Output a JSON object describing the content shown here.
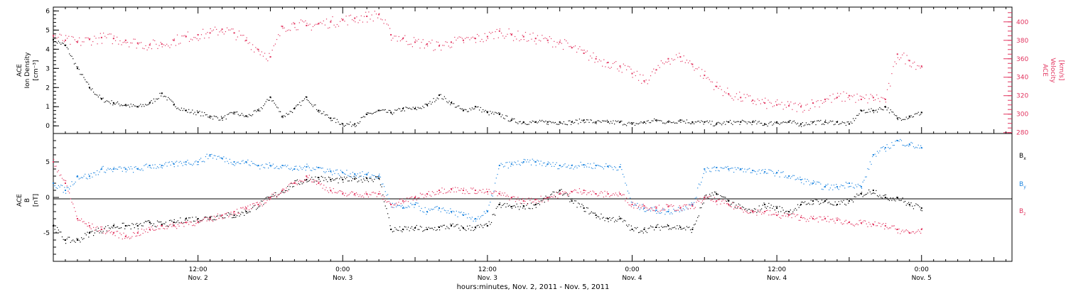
{
  "colors": {
    "black": "#000000",
    "density": "#000000",
    "velocity": "#e2345f",
    "bx": "#000000",
    "by": "#1f86e0",
    "bz": "#e2345f"
  },
  "xaxis": {
    "ticks": [
      {
        "t": 36,
        "time": "12:00",
        "date": "Nov. 2"
      },
      {
        "t": 48,
        "time": "0:00",
        "date": "Nov. 3"
      },
      {
        "t": 60,
        "time": "12:00",
        "date": "Nov. 3"
      },
      {
        "t": 72,
        "time": "0:00",
        "date": "Nov. 4"
      },
      {
        "t": 84,
        "time": "12:00",
        "date": "Nov. 4"
      },
      {
        "t": 96,
        "time": "0:00",
        "date": "Nov. 5"
      }
    ],
    "label": "hours:minutes, Nov.  2, 2011 - Nov.  5, 2011",
    "range_hours": [
      24,
      103.5
    ]
  },
  "panel_top": {
    "left_label_lines": [
      "ACE",
      "Ion Density"
    ],
    "left_unit": "[cm⁻³]",
    "left_ticks": [
      "0",
      "1",
      "2",
      "3",
      "4",
      "5",
      "6"
    ],
    "right_label_lines": [
      "ACE",
      "Velocity"
    ],
    "right_unit": "[km/s]",
    "right_ticks": [
      "280",
      "300",
      "320",
      "340",
      "360",
      "380",
      "400"
    ]
  },
  "panel_bottom": {
    "left_label_lines": [
      "ACE",
      "B"
    ],
    "left_unit": "[nT]",
    "left_ticks": [
      "-5",
      "0",
      "5"
    ],
    "legend": [
      {
        "label": "B",
        "sub": "x",
        "color": "#000000"
      },
      {
        "label": "B",
        "sub": "y",
        "color": "#1f86e0"
      },
      {
        "label": "B",
        "sub": "z",
        "color": "#e2345f"
      }
    ]
  },
  "chart_data": [
    {
      "type": "scatter",
      "title": "",
      "x_units": "hours since Nov. 1, 2011 0:00",
      "series": [
        {
          "name": "Ion Density",
          "axis": "left",
          "ylim": [
            -0.4,
            6.2
          ],
          "x": [
            24,
            25,
            26,
            27,
            28,
            29,
            30,
            31,
            32,
            33,
            34,
            35,
            36,
            37,
            38,
            39,
            40,
            41,
            42,
            43,
            44,
            45,
            46,
            47,
            48,
            49,
            50,
            51,
            52,
            53,
            54,
            55,
            56,
            57,
            58,
            59,
            60,
            61,
            62,
            63,
            64,
            65,
            66,
            67,
            68,
            69,
            70,
            71,
            72,
            73,
            74,
            75,
            76,
            77,
            78,
            79,
            80,
            81,
            82,
            83,
            84,
            85,
            86,
            87,
            88,
            89,
            90,
            91,
            92,
            93,
            94,
            95,
            96
          ],
          "values": [
            4.5,
            4.2,
            3.0,
            2.0,
            1.4,
            1.2,
            1.1,
            1.0,
            1.2,
            1.7,
            1.1,
            0.8,
            0.7,
            0.5,
            0.4,
            0.7,
            0.5,
            0.8,
            1.5,
            0.5,
            0.9,
            1.5,
            0.8,
            0.4,
            0.1,
            0.1,
            0.6,
            0.8,
            0.7,
            0.9,
            0.9,
            1.1,
            1.6,
            1.2,
            0.8,
            1.0,
            0.7,
            0.6,
            0.3,
            0.2,
            0.2,
            0.2,
            0.2,
            0.2,
            0.3,
            0.2,
            0.2,
            0.2,
            0.1,
            0.2,
            0.3,
            0.2,
            0.3,
            0.2,
            0.2,
            0.1,
            0.2,
            0.2,
            0.2,
            0.1,
            0.2,
            0.2,
            0.1,
            0.2,
            0.2,
            0.2,
            0.1,
            0.8,
            0.8,
            1.0,
            0.4,
            0.5,
            0.7
          ]
        },
        {
          "name": "Velocity",
          "axis": "right",
          "ylim": [
            279,
            416
          ],
          "x": [
            24,
            25,
            26,
            27,
            28,
            29,
            30,
            31,
            32,
            33,
            34,
            35,
            36,
            37,
            38,
            39,
            40,
            41,
            42,
            43,
            44,
            45,
            46,
            47,
            48,
            49,
            50,
            51,
            52,
            53,
            54,
            55,
            56,
            57,
            58,
            59,
            60,
            61,
            62,
            63,
            64,
            65,
            66,
            67,
            68,
            69,
            70,
            71,
            72,
            73,
            74,
            75,
            76,
            77,
            78,
            79,
            80,
            81,
            82,
            83,
            84,
            85,
            86,
            87,
            88,
            89,
            90,
            91,
            92,
            93,
            94,
            95,
            96
          ],
          "values": [
            385,
            380,
            378,
            381,
            383,
            382,
            380,
            377,
            375,
            376,
            380,
            384,
            386,
            388,
            392,
            388,
            380,
            370,
            362,
            395,
            398,
            396,
            398,
            400,
            402,
            404,
            406,
            408,
            386,
            382,
            378,
            376,
            374,
            378,
            380,
            382,
            384,
            390,
            386,
            384,
            382,
            380,
            378,
            372,
            366,
            360,
            356,
            352,
            344,
            336,
            348,
            360,
            362,
            354,
            342,
            330,
            322,
            318,
            315,
            312,
            310,
            309,
            308,
            312,
            316,
            318,
            320,
            316,
            318,
            316,
            365,
            358,
            352
          ]
        }
      ]
    },
    {
      "type": "scatter",
      "title": "",
      "x_units": "hours since Nov. 1, 2011 0:00",
      "ylim": [
        -9,
        9
      ],
      "series": [
        {
          "name": "Bx",
          "x": [
            24,
            25,
            26,
            27,
            28,
            29,
            30,
            31,
            32,
            33,
            34,
            35,
            36,
            37,
            38,
            39,
            40,
            41,
            42,
            43,
            44,
            45,
            46,
            47,
            48,
            49,
            50,
            51,
            52,
            53,
            54,
            55,
            56,
            57,
            58,
            59,
            60,
            61,
            62,
            63,
            64,
            65,
            66,
            67,
            68,
            69,
            70,
            71,
            72,
            73,
            74,
            75,
            76,
            77,
            78,
            79,
            80,
            81,
            82,
            83,
            84,
            85,
            86,
            87,
            88,
            89,
            90,
            91,
            92,
            93,
            94,
            95,
            96
          ],
          "values": [
            -4,
            -6,
            -6,
            -5,
            -4.5,
            -4,
            -4,
            -4,
            -3.5,
            -3.8,
            -3.5,
            -3,
            -3,
            -2.8,
            -2.5,
            -2.5,
            -2,
            -1,
            0,
            1,
            2,
            2.5,
            2.8,
            2.5,
            2.5,
            2.6,
            2.7,
            2.7,
            -4.5,
            -4.5,
            -4.3,
            -4.5,
            -4.2,
            -4,
            -4.3,
            -4.2,
            -4,
            -1,
            -1.3,
            -1.2,
            -1,
            0,
            1,
            -0.5,
            -1.5,
            -2.5,
            -3,
            -3,
            -4.5,
            -4.5,
            -4.2,
            -4,
            -4.2,
            -4.5,
            0,
            0.5,
            -0.5,
            -1.5,
            -2,
            -1,
            -1.5,
            -2,
            -1,
            -0.5,
            -0.5,
            -1,
            -0.5,
            0.5,
            1,
            0,
            0,
            -1,
            -1.5
          ]
        },
        {
          "name": "By",
          "x": [
            24,
            25,
            26,
            27,
            28,
            29,
            30,
            31,
            32,
            33,
            34,
            35,
            36,
            37,
            38,
            39,
            40,
            41,
            42,
            43,
            44,
            45,
            46,
            47,
            48,
            49,
            50,
            51,
            52,
            53,
            54,
            55,
            56,
            57,
            58,
            59,
            60,
            61,
            62,
            63,
            64,
            65,
            66,
            67,
            68,
            69,
            70,
            71,
            72,
            73,
            74,
            75,
            76,
            77,
            78,
            79,
            80,
            81,
            82,
            83,
            84,
            85,
            86,
            87,
            88,
            89,
            90,
            91,
            92,
            93,
            94,
            95,
            96
          ],
          "values": [
            2,
            1,
            3,
            3,
            4,
            4,
            4,
            4,
            4.5,
            4.5,
            4.7,
            5,
            5,
            6,
            5.5,
            5,
            5,
            4.5,
            4.5,
            4.5,
            4,
            4.3,
            4.2,
            3.7,
            3.5,
            3.3,
            3.2,
            3,
            -1,
            -1.5,
            -1,
            -2,
            -1.5,
            -2,
            -2.5,
            -3,
            -2,
            4.5,
            4.7,
            5,
            5,
            4.7,
            4.5,
            4.5,
            4.6,
            4.5,
            4.4,
            4.3,
            -1,
            -1.5,
            -1.8,
            -2,
            -1.5,
            -1,
            4,
            4.2,
            4,
            4,
            3.8,
            3.6,
            3.5,
            3,
            2.5,
            2,
            1.5,
            1.5,
            2,
            1.5,
            6,
            7,
            8,
            7.5,
            7
          ]
        },
        {
          "name": "Bz",
          "x": [
            24,
            25,
            26,
            27,
            28,
            29,
            30,
            31,
            32,
            33,
            34,
            35,
            36,
            37,
            38,
            39,
            40,
            41,
            42,
            43,
            44,
            45,
            46,
            47,
            48,
            49,
            50,
            51,
            52,
            53,
            54,
            55,
            56,
            57,
            58,
            59,
            60,
            61,
            62,
            63,
            64,
            65,
            66,
            67,
            68,
            69,
            70,
            71,
            72,
            73,
            74,
            75,
            76,
            77,
            78,
            79,
            80,
            81,
            82,
            83,
            84,
            85,
            86,
            87,
            88,
            89,
            90,
            91,
            92,
            93,
            94,
            95,
            96
          ],
          "values": [
            5,
            2,
            -3,
            -4,
            -4.5,
            -5,
            -5.5,
            -5,
            -4.5,
            -4,
            -4,
            -3.5,
            -3.5,
            -3,
            -2.5,
            -2,
            -1.5,
            -1,
            0,
            1,
            2,
            3,
            2,
            1,
            0.5,
            0.5,
            0.5,
            0.5,
            -1,
            -0.5,
            0,
            0.5,
            1,
            1.2,
            1,
            1,
            0.8,
            0.5,
            0,
            -0.5,
            -0.3,
            0,
            0.5,
            0.8,
            1,
            0.5,
            0.5,
            0.5,
            -1,
            -1.2,
            -1.5,
            -1.3,
            -1.5,
            -1.2,
            0,
            -0.5,
            -1,
            -1.5,
            -2,
            -2,
            -2.5,
            -2.5,
            -2.8,
            -3,
            -3,
            -3.2,
            -3.5,
            -3.6,
            -3.8,
            -4,
            -4.5,
            -5,
            -4.5
          ]
        }
      ]
    }
  ]
}
